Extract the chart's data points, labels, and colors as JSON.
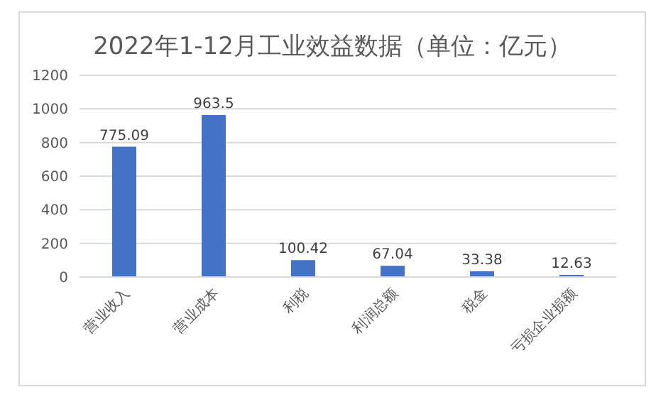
{
  "chart_data": {
    "type": "bar",
    "title": "2022年1-12月工业效益数据（单位：亿元）",
    "categories": [
      "营业收入",
      "营业成本",
      "利税",
      "利润总额",
      "税金",
      "亏损企业损额"
    ],
    "values": [
      775.09,
      963.5,
      100.42,
      67.04,
      33.38,
      12.63
    ],
    "color": "#4472c4",
    "ylim": [
      0,
      1200
    ],
    "yticks": [
      0,
      200,
      400,
      600,
      800,
      1000,
      1200
    ],
    "grid": "y",
    "data_labels": true
  }
}
